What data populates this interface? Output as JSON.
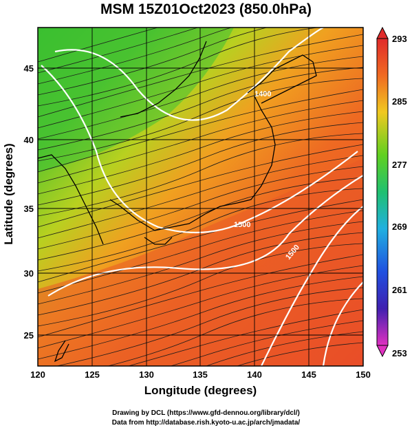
{
  "title": "MSM 15Z01Oct2023 (850.0hPa)",
  "axes": {
    "xlabel": "Longitude (degrees)",
    "ylabel": "Latitude  (degrees)",
    "xticks": [
      "120",
      "125",
      "130",
      "135",
      "140",
      "145",
      "150"
    ],
    "yticks": [
      "25",
      "30",
      "35",
      "40",
      "45"
    ],
    "xrange": [
      120,
      150
    ],
    "yrange": [
      22.4,
      47.6
    ]
  },
  "colorbar": {
    "ticks": [
      "293",
      "285",
      "277",
      "269",
      "261",
      "253"
    ],
    "range": [
      253,
      293
    ]
  },
  "contour_labels": [
    "1400",
    "1500",
    "1500"
  ],
  "credits": [
    "Drawing by DCL (https://www.gfd-dennou.org/library/dcl/)",
    "Data from http://database.rish.kyoto-u.ac.jp/arch/jmadata/"
  ],
  "colors": {
    "warm": "#e8402a",
    "mid": "#f0c020",
    "cool": "#30c030",
    "contour": "#ffffff",
    "coast": "#000000"
  }
}
